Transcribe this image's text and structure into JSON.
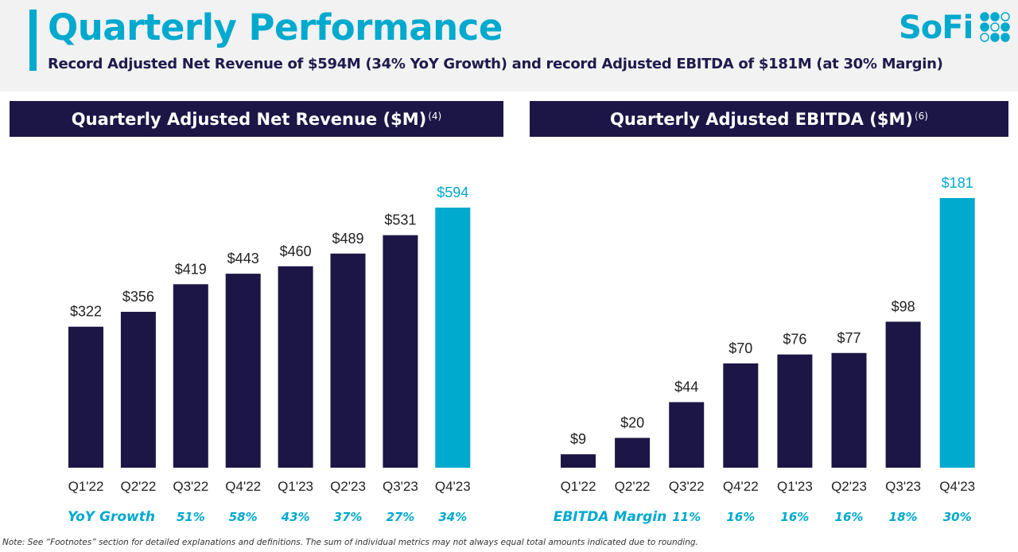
{
  "header": {
    "title": "Quarterly Performance",
    "subtitle": "Record Adjusted Net Revenue of $594M (34% YoY Growth) and record Adjusted EBITDA of $181M (at 30% Margin)",
    "logo_text": "SoFi"
  },
  "colors": {
    "navy": "#1c1646",
    "cyan": "#00a9ce",
    "header_bg": "#f2f2f2"
  },
  "chart_data": [
    {
      "type": "bar",
      "title": "Quarterly Adjusted Net Revenue ($M)",
      "footnote_ref": "(4)",
      "categories": [
        "Q1'22",
        "Q2'22",
        "Q3'22",
        "Q4'22",
        "Q1'23",
        "Q2'23",
        "Q3'23",
        "Q4'23"
      ],
      "values": [
        322,
        356,
        419,
        443,
        460,
        489,
        531,
        594
      ],
      "data_labels": [
        "$322",
        "$356",
        "$419",
        "$443",
        "$460",
        "$489",
        "$531",
        "$594"
      ],
      "highlight_index": 7,
      "grid": false,
      "ylim": [
        0,
        600
      ],
      "sub_row": {
        "label": "YoY Growth",
        "values": [
          "",
          "",
          "51%",
          "58%",
          "43%",
          "37%",
          "27%",
          "34%"
        ]
      }
    },
    {
      "type": "bar",
      "title": "Quarterly Adjusted EBITDA ($M)",
      "footnote_ref": "(6)",
      "categories": [
        "Q1'22",
        "Q2'22",
        "Q3'22",
        "Q4'22",
        "Q1'23",
        "Q2'23",
        "Q3'23",
        "Q4'23"
      ],
      "values": [
        9,
        20,
        44,
        70,
        76,
        77,
        98,
        181
      ],
      "data_labels": [
        "$9",
        "$20",
        "$44",
        "$70",
        "$76",
        "$77",
        "$98",
        "$181"
      ],
      "highlight_index": 7,
      "grid": false,
      "ylim": [
        0,
        190
      ],
      "sub_row": {
        "label": "EBITDA Margin",
        "values": [
          "",
          "",
          "11%",
          "16%",
          "16%",
          "16%",
          "18%",
          "30%"
        ]
      }
    }
  ],
  "note": "Note: See “Footnotes” section for detailed explanations and definitions. The sum of individual metrics may not always equal total amounts indicated due to rounding."
}
